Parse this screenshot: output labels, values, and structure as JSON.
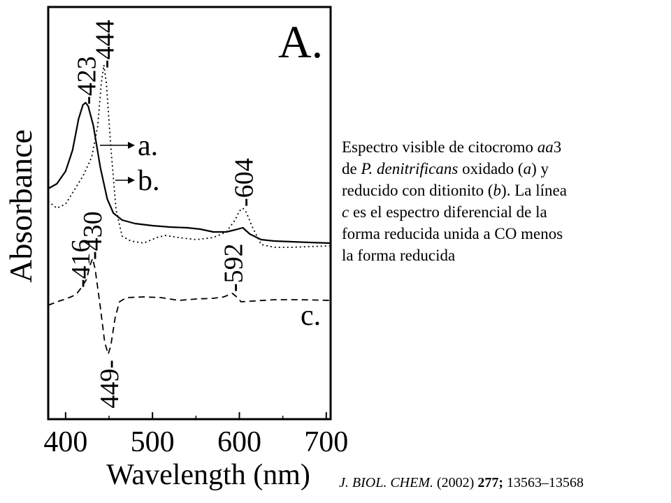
{
  "chart_data": {
    "type": "line",
    "panel_label": "A.",
    "xlabel": "Wavelength (nm)",
    "ylabel": "Absorbance",
    "xlim": [
      380,
      705
    ],
    "x_ticks": [
      400,
      500,
      600,
      700
    ],
    "grid": false,
    "series": [
      {
        "name": "a.",
        "style": "solid",
        "peaks": [
          423,
          604
        ],
        "points": [
          [
            380,
            270
          ],
          [
            390,
            263
          ],
          [
            400,
            245
          ],
          [
            408,
            215
          ],
          [
            415,
            170
          ],
          [
            420,
            150
          ],
          [
            423,
            147
          ],
          [
            426,
            152
          ],
          [
            432,
            180
          ],
          [
            440,
            240
          ],
          [
            448,
            285
          ],
          [
            455,
            305
          ],
          [
            465,
            315
          ],
          [
            480,
            320
          ],
          [
            500,
            323
          ],
          [
            520,
            325
          ],
          [
            540,
            326
          ],
          [
            555,
            328
          ],
          [
            570,
            332
          ],
          [
            585,
            332
          ],
          [
            595,
            329
          ],
          [
            604,
            326
          ],
          [
            612,
            335
          ],
          [
            625,
            343
          ],
          [
            640,
            345
          ],
          [
            660,
            346
          ],
          [
            680,
            347
          ],
          [
            705,
            348
          ]
        ]
      },
      {
        "name": "b.",
        "style": "dotted",
        "peaks": [
          444,
          604
        ],
        "points": [
          [
            380,
            288
          ],
          [
            390,
            298
          ],
          [
            400,
            292
          ],
          [
            410,
            272
          ],
          [
            420,
            252
          ],
          [
            430,
            225
          ],
          [
            437,
            180
          ],
          [
            441,
            120
          ],
          [
            444,
            93
          ],
          [
            447,
            120
          ],
          [
            452,
            210
          ],
          [
            458,
            300
          ],
          [
            465,
            338
          ],
          [
            475,
            345
          ],
          [
            490,
            348
          ],
          [
            505,
            340
          ],
          [
            515,
            337
          ],
          [
            530,
            340
          ],
          [
            550,
            343
          ],
          [
            570,
            340
          ],
          [
            585,
            332
          ],
          [
            595,
            315
          ],
          [
            600,
            302
          ],
          [
            604,
            298
          ],
          [
            608,
            304
          ],
          [
            615,
            325
          ],
          [
            625,
            350
          ],
          [
            640,
            354
          ],
          [
            660,
            354
          ],
          [
            680,
            353
          ],
          [
            705,
            352
          ]
        ]
      },
      {
        "name": "c.",
        "style": "dashed",
        "peaks": [
          430,
          592
        ],
        "troughs": [
          449
        ],
        "labeled_points": [
          416,
          430,
          449,
          592
        ],
        "points": [
          [
            380,
            437
          ],
          [
            390,
            432
          ],
          [
            400,
            428
          ],
          [
            408,
            424
          ],
          [
            413,
            420
          ],
          [
            418,
            412
          ],
          [
            424,
            400
          ],
          [
            428,
            380
          ],
          [
            431,
            370
          ],
          [
            434,
            385
          ],
          [
            440,
            440
          ],
          [
            445,
            490
          ],
          [
            449,
            507
          ],
          [
            452,
            495
          ],
          [
            457,
            455
          ],
          [
            462,
            432
          ],
          [
            470,
            426
          ],
          [
            490,
            425
          ],
          [
            510,
            426
          ],
          [
            530,
            430
          ],
          [
            550,
            428
          ],
          [
            570,
            427
          ],
          [
            582,
            425
          ],
          [
            588,
            422
          ],
          [
            592,
            420
          ],
          [
            596,
            424
          ],
          [
            602,
            432
          ],
          [
            615,
            431
          ],
          [
            640,
            429
          ],
          [
            670,
            429
          ],
          [
            705,
            430
          ]
        ]
      }
    ],
    "peak_labels": [
      {
        "text": "-423",
        "x": 423
      },
      {
        "text": "-444",
        "x": 444
      },
      {
        "text": "-604",
        "x": 604
      },
      {
        "text": "-430",
        "x": 430
      },
      {
        "text": "-416",
        "x": 416
      },
      {
        "text": "-592",
        "x": 592
      },
      {
        "text": "449-",
        "x": 449
      }
    ],
    "curve_labels": [
      "a.",
      "b.",
      "c."
    ]
  },
  "caption": {
    "line1_a": "Espectro visible de citocromo ",
    "line1_i": "aa",
    "line1_b": "3",
    "line2_a": "de ",
    "line2_i": "P. denitrificans",
    "line2_b": " oxidado (",
    "line2_c": "a",
    "line2_d": ") y",
    "line3_a": "reducido con ditionito (",
    "line3_b": "b",
    "line3_c": "). La línea",
    "line4_a": "c",
    "line4_b": " es el espectro diferencial de la",
    "line5": "forma reducida unida a CO menos",
    "line6": "la forma reducida"
  },
  "citation": {
    "journal": "J. BIOL. CHEM.",
    "year": " (2002) ",
    "volume": "277;",
    "pages": " 13563–13568"
  }
}
